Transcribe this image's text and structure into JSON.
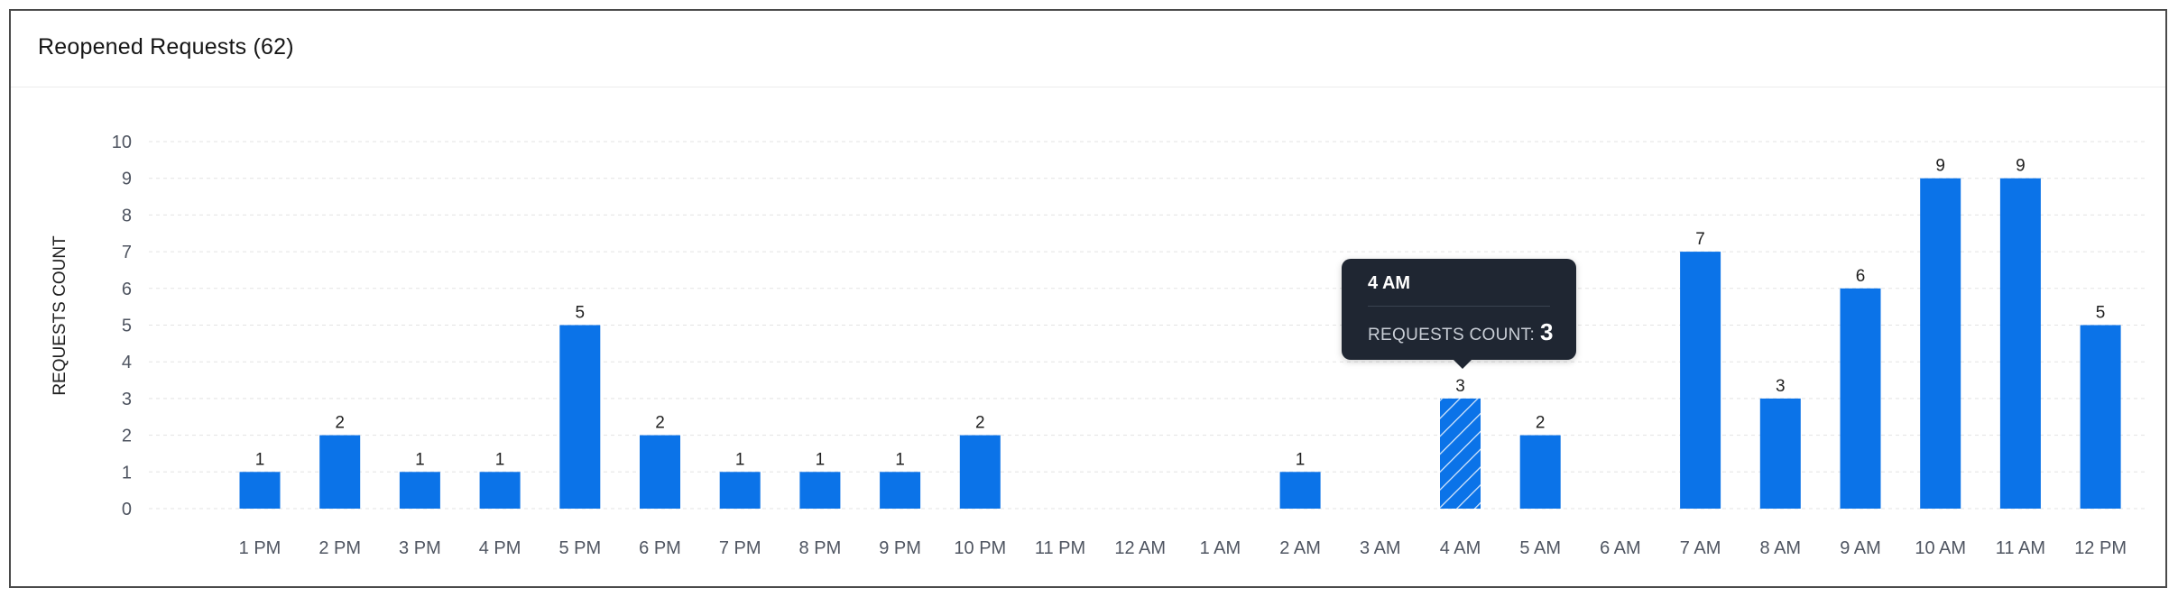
{
  "card": {
    "title": "Reopened Requests (62)"
  },
  "chart_data": {
    "type": "bar",
    "title": "Reopened Requests (62)",
    "xlabel": "",
    "ylabel": "REQUESTS COUNT",
    "ylim": [
      0,
      10
    ],
    "yticks": [
      0,
      1,
      2,
      3,
      4,
      5,
      6,
      7,
      8,
      9,
      10
    ],
    "grid": true,
    "categories": [
      "1 PM",
      "2 PM",
      "3 PM",
      "4 PM",
      "5 PM",
      "6 PM",
      "7 PM",
      "8 PM",
      "9 PM",
      "10 PM",
      "11 PM",
      "12 AM",
      "1 AM",
      "2 AM",
      "3 AM",
      "4 AM",
      "5 AM",
      "6 AM",
      "7 AM",
      "8 AM",
      "9 AM",
      "10 AM",
      "11 AM",
      "12 PM"
    ],
    "values": [
      1,
      2,
      1,
      1,
      5,
      2,
      1,
      1,
      1,
      2,
      0,
      0,
      0,
      1,
      0,
      3,
      2,
      0,
      7,
      3,
      6,
      9,
      9,
      5
    ],
    "highlighted_category": "4 AM",
    "bar_color": "#0b73e8"
  },
  "tooltip": {
    "title": "4 AM",
    "label": "REQUESTS COUNT:",
    "value": "3"
  }
}
